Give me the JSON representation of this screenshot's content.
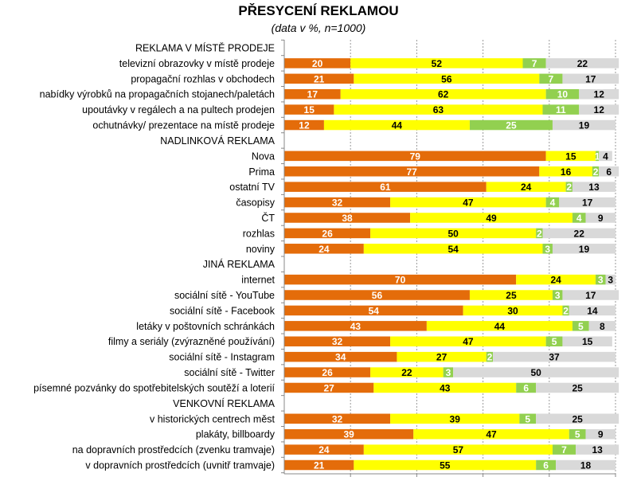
{
  "chart_data": {
    "type": "bar",
    "orientation": "horizontal",
    "stacked": true,
    "title": "PŘESYCENÍ REKLAMOU",
    "subtitle": "(data v %, n=1000)",
    "xlim": [
      0,
      100
    ],
    "grid": true,
    "legend": "none",
    "colors": [
      "#E46C0A",
      "#FFFF00",
      "#92D050",
      "#D9D9D9"
    ],
    "label_colors": [
      "#FFFFFF",
      "#000000",
      "#FFFFFF",
      "#000000"
    ],
    "rows": [
      {
        "label": "REKLAMA V MÍSTĚ PRODEJE",
        "heading": true
      },
      {
        "label": "televizní obrazovky v místě prodeje",
        "values": [
          20,
          52,
          7,
          22
        ]
      },
      {
        "label": "propagační rozhlas v obchodech",
        "values": [
          21,
          56,
          7,
          17
        ]
      },
      {
        "label": "nabídky výrobků na propagačních stojanech/paletách",
        "values": [
          17,
          62,
          10,
          12
        ]
      },
      {
        "label": "upoutávky v regálech a na pultech prodejen",
        "values": [
          15,
          63,
          11,
          12
        ]
      },
      {
        "label": "ochutnávky/ prezentace na místě prodeje",
        "values": [
          12,
          44,
          25,
          19
        ]
      },
      {
        "label": "NADLINKOVÁ REKLAMA",
        "heading": true
      },
      {
        "label": "Nova",
        "values": [
          79,
          15,
          1,
          4
        ]
      },
      {
        "label": "Prima",
        "values": [
          77,
          16,
          2,
          6
        ]
      },
      {
        "label": "ostatní TV",
        "values": [
          61,
          24,
          2,
          13
        ]
      },
      {
        "label": "časopisy",
        "values": [
          32,
          47,
          4,
          17
        ]
      },
      {
        "label": "ČT",
        "values": [
          38,
          49,
          4,
          9
        ]
      },
      {
        "label": "rozhlas",
        "values": [
          26,
          50,
          2,
          22
        ]
      },
      {
        "label": "noviny",
        "values": [
          24,
          54,
          3,
          19
        ]
      },
      {
        "label": "JINÁ REKLAMA",
        "heading": true
      },
      {
        "label": "internet",
        "values": [
          70,
          24,
          3,
          3
        ]
      },
      {
        "label": "sociální sítě - YouTube",
        "values": [
          56,
          25,
          3,
          17
        ]
      },
      {
        "label": "sociální sítě - Facebook",
        "values": [
          54,
          30,
          2,
          14
        ]
      },
      {
        "label": "letáky v poštovních schránkách",
        "values": [
          43,
          44,
          5,
          8
        ]
      },
      {
        "label": "filmy a seriály (zvýrazněné používání)",
        "values": [
          32,
          47,
          5,
          15
        ]
      },
      {
        "label": "sociální sítě - Instagram",
        "values": [
          34,
          27,
          2,
          37
        ]
      },
      {
        "label": "sociální sítě - Twitter",
        "values": [
          26,
          22,
          3,
          50
        ]
      },
      {
        "label": "písemné pozvánky do spotřebitelských soutěží a loterií",
        "values": [
          27,
          43,
          6,
          25
        ]
      },
      {
        "label": "VENKOVNÍ REKLAMA",
        "heading": true
      },
      {
        "label": "v historických centrech měst",
        "values": [
          32,
          39,
          5,
          25
        ]
      },
      {
        "label": "plakáty, billboardy",
        "values": [
          39,
          47,
          5,
          9
        ]
      },
      {
        "label": "na dopravních prostředcích (zvenku tramvaje)",
        "values": [
          24,
          57,
          7,
          13
        ]
      },
      {
        "label": "v dopravních prostředcích (uvnitř tramvaje)",
        "values": [
          21,
          55,
          6,
          18
        ]
      }
    ]
  }
}
